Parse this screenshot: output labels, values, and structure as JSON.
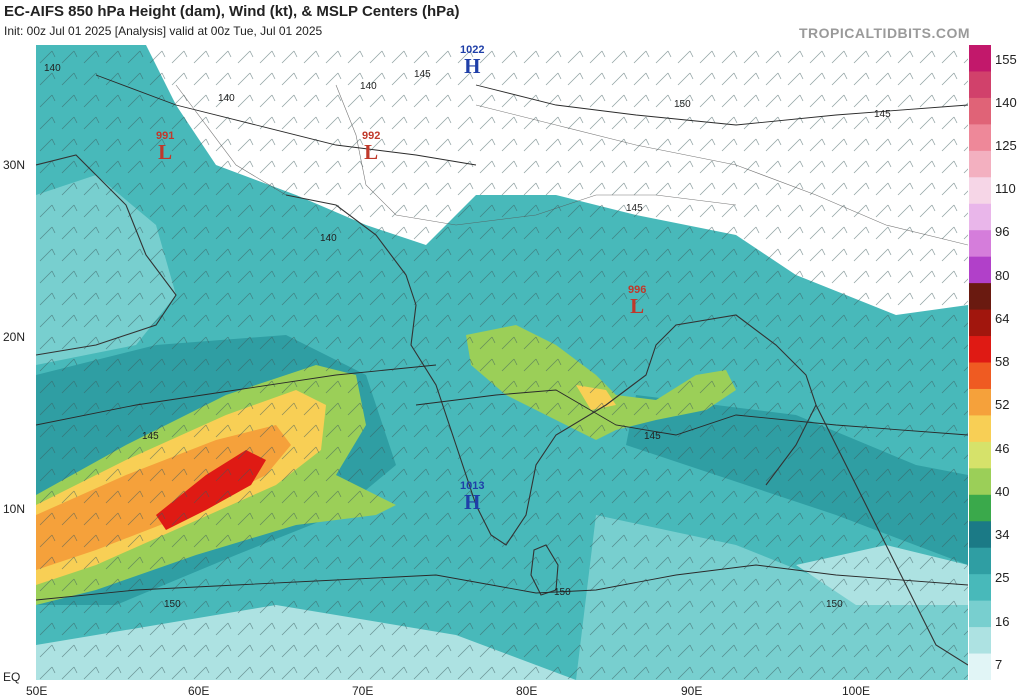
{
  "header": {
    "title": "EC-AIFS 850 hPa Height (dam), Wind (kt), & MSLP Centers (hPa)",
    "subtitle": "Init: 00z Jul 01 2025   [Analysis]   valid at 00z Tue, Jul 01 2025",
    "brand": "TROPICALTIDBITS.COM"
  },
  "axes": {
    "lat_labels": [
      "30N",
      "20N",
      "10N",
      "EQ"
    ],
    "lon_labels": [
      "50E",
      "60E",
      "70E",
      "80E",
      "90E",
      "100E"
    ]
  },
  "colorbar": {
    "labels": [
      "155",
      "140",
      "125",
      "110",
      "96",
      "80",
      "64",
      "58",
      "52",
      "46",
      "40",
      "34",
      "25",
      "16",
      "7"
    ],
    "colors": [
      "#c2186b",
      "#d1416b",
      "#e06377",
      "#ee8899",
      "#f3b0c0",
      "#f6d6e7",
      "#e9b6ea",
      "#d57ddb",
      "#b140c9",
      "#6a1a10",
      "#a1160d",
      "#df1a14",
      "#ef5b22",
      "#f5a13b",
      "#f8cf55",
      "#d6e26a",
      "#9bcf58",
      "#3aa94b",
      "#1b7a86",
      "#2f9ea3",
      "#48b9ba",
      "#78cfcf",
      "#ade2e2",
      "#e1f5f6"
    ]
  },
  "pressure_centers": [
    {
      "type": "L",
      "value": "991"
    },
    {
      "type": "L",
      "value": "992"
    },
    {
      "type": "H",
      "value": "1022"
    },
    {
      "type": "L",
      "value": "996"
    },
    {
      "type": "H",
      "value": "1013"
    }
  ],
  "contour_labels": [
    "140",
    "140",
    "140",
    "140",
    "145",
    "145",
    "145",
    "145",
    "145",
    "150",
    "150",
    "150",
    "150"
  ],
  "colors": {
    "ocean_band": "#2f9ea3",
    "jet_core": "#df1a14",
    "jet_mid": "#f5a13b",
    "jet_edge": "#9bcf58",
    "low_center": "#c0392b",
    "high_center": "#1f3fa8"
  }
}
